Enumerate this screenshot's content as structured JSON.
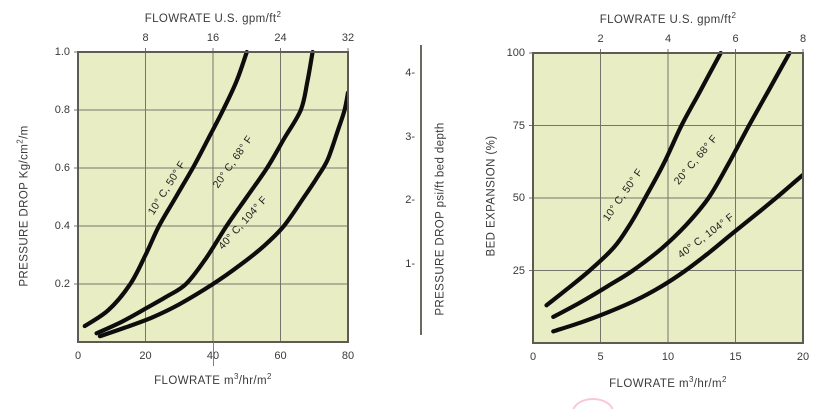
{
  "colors": {
    "plot_bg": "#e9edc4",
    "grid": "#75756d",
    "border": "#5c5c55",
    "curve": "#0d0d0d",
    "text": "#3a3a3a"
  },
  "chart_data": [
    {
      "type": "line",
      "top_axis_title": [
        {
          "t": "FLOWRATE U.S. gpm/ft"
        },
        {
          "sup": "2"
        }
      ],
      "bottom_axis_title": [
        {
          "t": "FLOWRATE m"
        },
        {
          "sup": "3"
        },
        {
          "t": "/hr/m"
        },
        {
          "sup": "2"
        }
      ],
      "y_axis_title": [
        {
          "t": "PRESSURE DROP Kg/cm"
        },
        {
          "sup": "2"
        },
        {
          "t": "/m"
        }
      ],
      "xlim": [
        0,
        80
      ],
      "ylim": [
        0,
        1.0
      ],
      "grid": true,
      "grid_x": [
        20,
        40,
        60
      ],
      "grid_y": [
        0.2,
        0.4,
        0.6,
        0.8
      ],
      "top_ticks": [
        {
          "label": "8",
          "x": 20
        },
        {
          "label": "16",
          "x": 40
        },
        {
          "label": "24",
          "x": 60
        },
        {
          "label": "32",
          "x": 80
        }
      ],
      "y_ticks": [
        {
          "label": "1.0",
          "y": 1.0
        },
        {
          "label": "0.8",
          "y": 0.8
        },
        {
          "label": "0.6",
          "y": 0.6
        },
        {
          "label": "0.4",
          "y": 0.4
        },
        {
          "label": "0.2",
          "y": 0.2
        }
      ],
      "x_ticks": [
        {
          "label": "0",
          "x": 0
        },
        {
          "label": "20",
          "x": 20
        },
        {
          "label": "40",
          "x": 40
        },
        {
          "label": "60",
          "x": 60
        },
        {
          "label": "80",
          "x": 80
        }
      ],
      "series": [
        {
          "label": "10° C, 50° F",
          "label_at": [
            26.5,
            0.53
          ],
          "label_angle": -58,
          "points": [
            [
              2,
              0.055
            ],
            [
              9,
              0.11
            ],
            [
              15.5,
              0.2
            ],
            [
              20,
              0.3
            ],
            [
              24,
              0.4
            ],
            [
              29,
              0.5
            ],
            [
              34,
              0.6
            ],
            [
              39,
              0.71
            ],
            [
              43,
              0.8
            ],
            [
              47,
              0.9
            ],
            [
              50,
              1.0
            ]
          ]
        },
        {
          "label": "20° C, 68° F",
          "label_at": [
            46,
            0.62
          ],
          "label_angle": -55,
          "points": [
            [
              5.5,
              0.03
            ],
            [
              13,
              0.07
            ],
            [
              20,
              0.115
            ],
            [
              26,
              0.155
            ],
            [
              32,
              0.2
            ],
            [
              38,
              0.29
            ],
            [
              44,
              0.4
            ],
            [
              50,
              0.5
            ],
            [
              56,
              0.6
            ],
            [
              61,
              0.7
            ],
            [
              66,
              0.8
            ],
            [
              68,
              0.9
            ],
            [
              69.5,
              1.0
            ]
          ]
        },
        {
          "label": "40° C, 104° F",
          "label_at": [
            49,
            0.41
          ],
          "label_angle": -48,
          "points": [
            [
              6.5,
              0.02
            ],
            [
              14,
              0.05
            ],
            [
              22,
              0.085
            ],
            [
              30,
              0.13
            ],
            [
              40,
              0.2
            ],
            [
              48,
              0.265
            ],
            [
              55,
              0.33
            ],
            [
              61,
              0.4
            ],
            [
              67,
              0.5
            ],
            [
              71,
              0.57
            ],
            [
              74,
              0.63
            ],
            [
              77,
              0.73
            ],
            [
              79,
              0.8
            ],
            [
              80,
              0.86
            ]
          ]
        }
      ]
    },
    {
      "type": "line",
      "top_axis_title": [
        {
          "t": "FLOWRATE U.S. gpm/ft"
        },
        {
          "sup": "2"
        }
      ],
      "bottom_axis_title": [
        {
          "t": "FLOWRATE m"
        },
        {
          "sup": "3"
        },
        {
          "t": "/hr/m"
        },
        {
          "sup": "2"
        }
      ],
      "y_axis_title": [
        {
          "t": "BED EXPANSION (%)"
        }
      ],
      "xlim": [
        0,
        20
      ],
      "ylim": [
        0,
        100
      ],
      "grid": true,
      "grid_x": [
        5,
        10,
        15
      ],
      "grid_y": [
        25,
        50,
        75
      ],
      "top_ticks": [
        {
          "label": "2",
          "x": 5
        },
        {
          "label": "4",
          "x": 10
        },
        {
          "label": "6",
          "x": 15
        },
        {
          "label": "8",
          "x": 20
        }
      ],
      "y_ticks": [
        {
          "label": "100",
          "y": 100
        },
        {
          "label": "75",
          "y": 75
        },
        {
          "label": "50",
          "y": 50
        },
        {
          "label": "25",
          "y": 25
        }
      ],
      "x_ticks": [
        {
          "label": "0",
          "x": 0
        },
        {
          "label": "5",
          "x": 5
        },
        {
          "label": "10",
          "x": 10
        },
        {
          "label": "15",
          "x": 15
        },
        {
          "label": "20",
          "x": 20
        }
      ],
      "series": [
        {
          "label": "10° C, 50° F",
          "label_at": [
            6.7,
            51
          ],
          "label_angle": -55,
          "points": [
            [
              1,
              13
            ],
            [
              2.5,
              18.5
            ],
            [
              4.2,
              25
            ],
            [
              6,
              33
            ],
            [
              7.2,
              41
            ],
            [
              8.3,
              50
            ],
            [
              9.7,
              62
            ],
            [
              11,
              75
            ],
            [
              12.4,
              87
            ],
            [
              13.9,
              100
            ]
          ]
        },
        {
          "label": "20° C, 68° F",
          "label_at": [
            12.1,
            63
          ],
          "label_angle": -50,
          "points": [
            [
              1.5,
              9
            ],
            [
              3.5,
              14
            ],
            [
              5.5,
              19.5
            ],
            [
              7.4,
              25
            ],
            [
              9.5,
              32.5
            ],
            [
              11.3,
              40.5
            ],
            [
              13,
              50
            ],
            [
              14.5,
              62
            ],
            [
              16,
              75
            ],
            [
              17.5,
              87.5
            ],
            [
              19,
              100
            ]
          ]
        },
        {
          "label": "40° C, 104° F",
          "label_at": [
            12.8,
            37
          ],
          "label_angle": -37,
          "points": [
            [
              1.5,
              4
            ],
            [
              3.5,
              7
            ],
            [
              5.5,
              10.5
            ],
            [
              7.5,
              14.5
            ],
            [
              9.5,
              19.5
            ],
            [
              11.3,
              25
            ],
            [
              13,
              31
            ],
            [
              14.7,
              37.5
            ],
            [
              16.3,
              43.5
            ],
            [
              18,
              50
            ],
            [
              19,
              54
            ],
            [
              20,
              58
            ]
          ]
        }
      ]
    }
  ],
  "secondary_axis": {
    "title": [
      {
        "t": "PRESSURE DROP psi/ft bed depth"
      }
    ],
    "ticks": [
      {
        "label": "4-",
        "value": 4
      },
      {
        "label": "3-",
        "value": 3
      },
      {
        "label": "2-",
        "value": 2
      },
      {
        "label": "1-",
        "value": 1
      }
    ]
  }
}
